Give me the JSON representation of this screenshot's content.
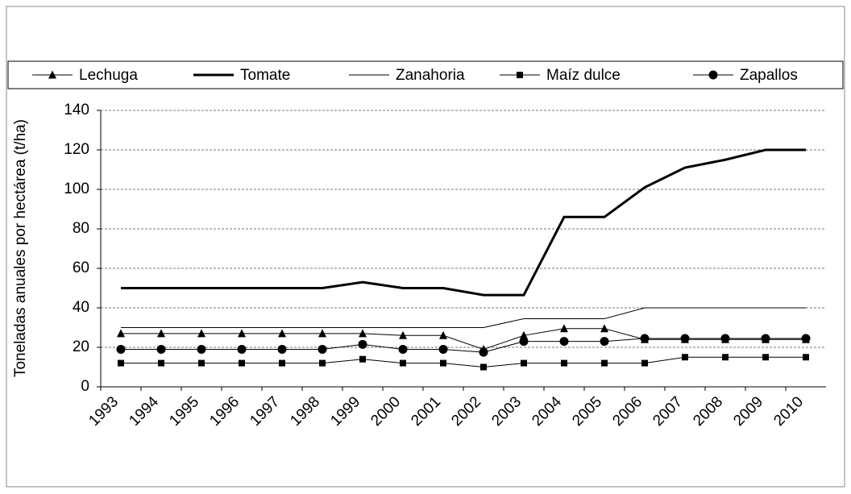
{
  "chart_data": {
    "type": "line",
    "y_label": "Toneladas anuales por hectárea (t/ha)",
    "categories": [
      "1993",
      "1994",
      "1995",
      "1996",
      "1997",
      "1998",
      "1999",
      "2000",
      "2001",
      "2002",
      "2003",
      "2004",
      "2005",
      "2006",
      "2007",
      "2008",
      "2009",
      "2010"
    ],
    "ylim": [
      0,
      140
    ],
    "yticks": [
      0,
      20,
      40,
      60,
      80,
      100,
      120,
      140
    ],
    "grid": true,
    "legend": "top",
    "series": [
      {
        "name": "Lechuga",
        "color": "#000000",
        "marker": "triangle",
        "line_width": 1,
        "values": [
          27,
          27,
          27,
          27,
          27,
          27,
          27,
          26,
          26,
          19,
          26,
          29.5,
          29.5,
          24,
          24,
          24,
          24,
          24
        ]
      },
      {
        "name": "Tomate",
        "color": "#000000",
        "marker": "none",
        "line_width": 3,
        "values": [
          50,
          50,
          50,
          50,
          50,
          50,
          53,
          50,
          50,
          46.5,
          46.5,
          86,
          86,
          101,
          111,
          115,
          120,
          120
        ]
      },
      {
        "name": "Zanahoria",
        "color": "#000000",
        "marker": "none",
        "line_width": 1,
        "values": [
          30,
          30,
          30,
          30,
          30,
          30,
          30,
          30,
          30,
          30,
          34.5,
          34.5,
          34.5,
          40,
          40,
          40,
          40,
          40
        ]
      },
      {
        "name": "Maíz dulce",
        "color": "#000000",
        "marker": "square",
        "line_width": 1,
        "values": [
          12,
          12,
          12,
          12,
          12,
          12,
          14,
          12,
          12,
          10,
          12,
          12,
          12,
          12,
          15,
          15,
          15,
          15
        ]
      },
      {
        "name": "Zapallos",
        "color": "#000000",
        "marker": "circle",
        "line_width": 1,
        "values": [
          19,
          19,
          19,
          19,
          19,
          19,
          21.5,
          19,
          19,
          17.5,
          23,
          23,
          23,
          24.5,
          24.5,
          24.5,
          24.5,
          24.5
        ]
      }
    ]
  }
}
